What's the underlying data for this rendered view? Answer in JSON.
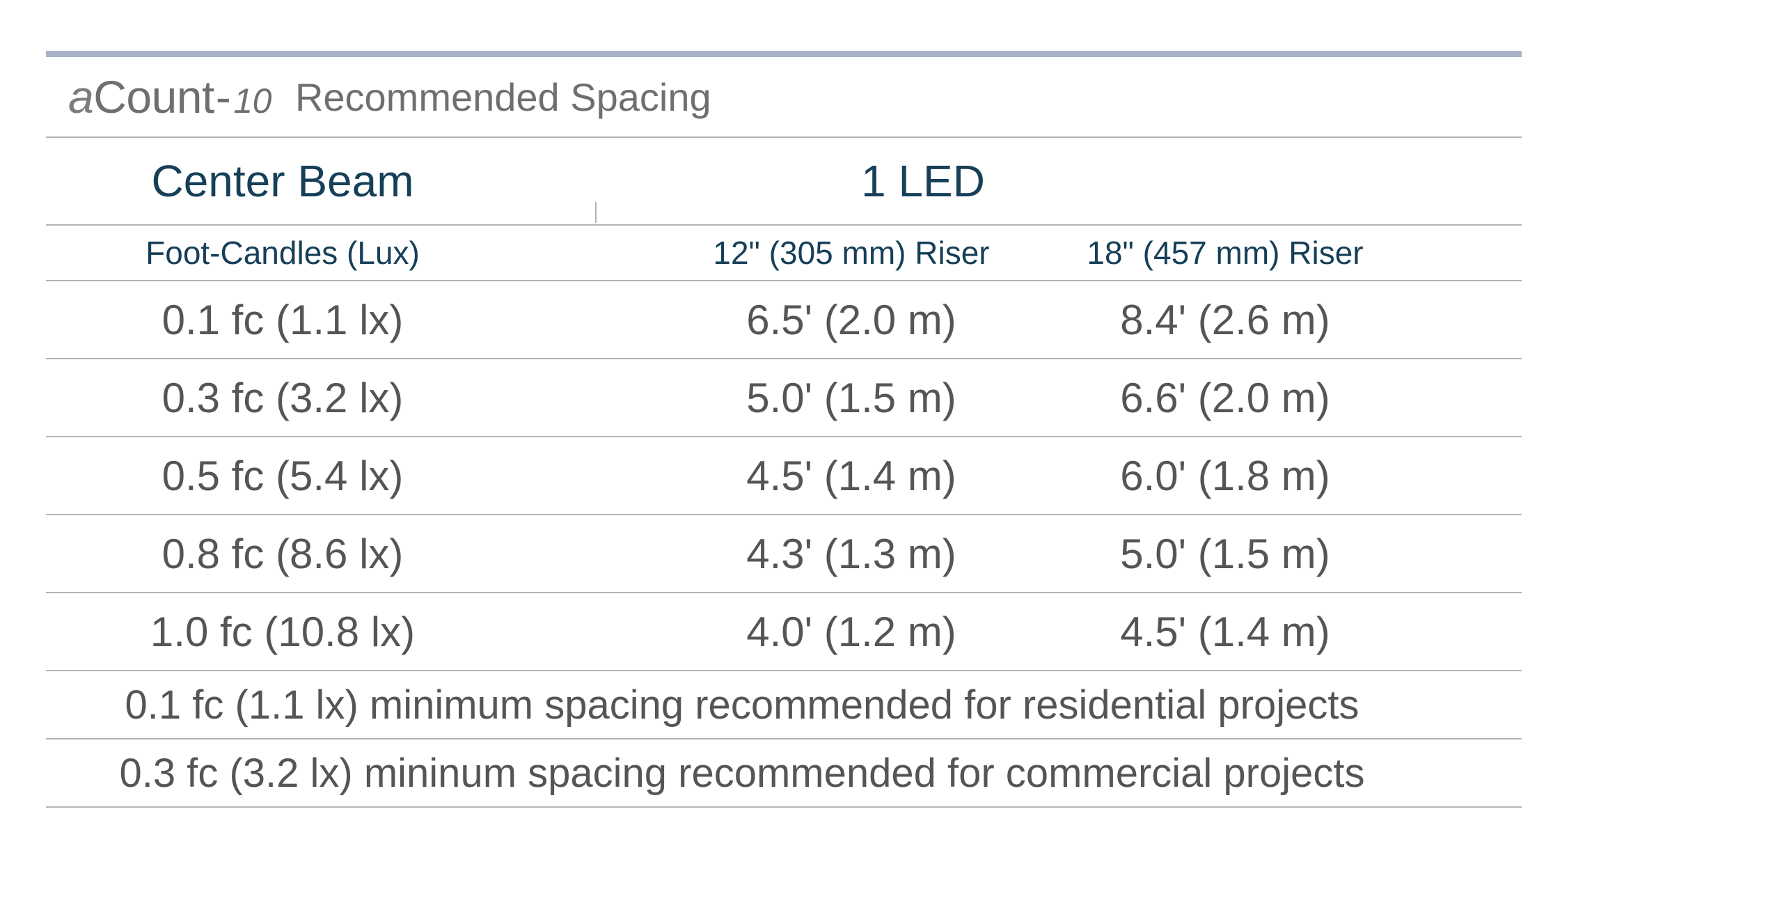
{
  "header": {
    "brand_prefix": "a",
    "brand_name": "Count",
    "brand_dash": "-",
    "brand_model": "10",
    "title": "Recommended Spacing"
  },
  "table": {
    "group_header_left": "Center Beam",
    "group_header_right": "1 LED",
    "columns": [
      "Foot-Candles (Lux)",
      "12\" (305 mm) Riser",
      "18\" (457 mm) Riser"
    ],
    "rows": [
      [
        "0.1 fc (1.1 lx)",
        "6.5' (2.0 m)",
        "8.4' (2.6 m)"
      ],
      [
        "0.3 fc (3.2 lx)",
        "5.0' (1.5 m)",
        "6.6' (2.0 m)"
      ],
      [
        "0.5 fc (5.4 lx)",
        "4.5' (1.4 m)",
        "6.0' (1.8 m)"
      ],
      [
        "0.8 fc (8.6 lx)",
        "4.3' (1.3 m)",
        "5.0' (1.5 m)"
      ],
      [
        "1.0 fc (10.8 lx)",
        "4.0' (1.2 m)",
        "4.5' (1.4 m)"
      ]
    ],
    "notes": [
      "0.1 fc (1.1 lx) minimum spacing recommended for residential projects",
      "0.3 fc (3.2 lx) mininum spacing recommended for commercial projects"
    ]
  },
  "colors": {
    "accent_rule": "#a8b5c8",
    "header_text": "#163f58",
    "body_text": "#555555",
    "divider": "#b3b3b3"
  }
}
